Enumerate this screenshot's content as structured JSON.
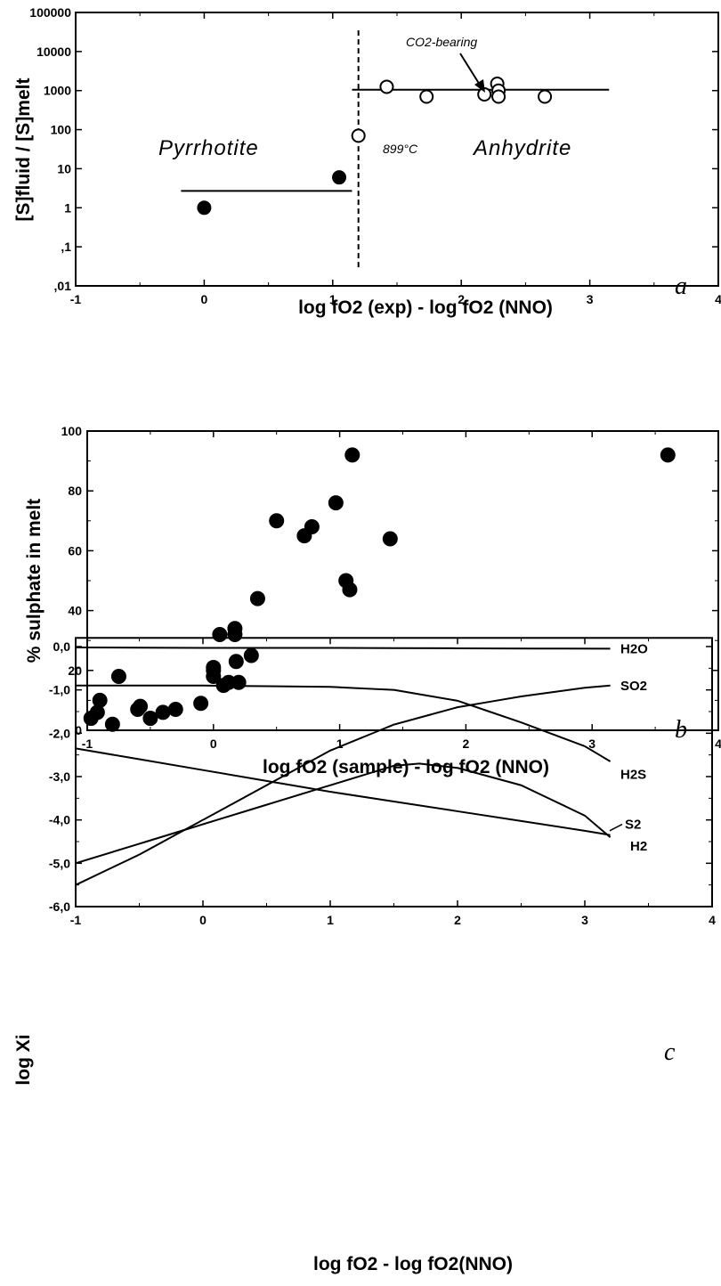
{
  "chart_data": [
    {
      "type": "scatter",
      "panel_label": "a",
      "xlabel": "log fO2 (exp) - log fO2 (NNO)",
      "ylabel": "[S]fluid / [S]melt",
      "xlim": [
        -1,
        4
      ],
      "ylim": [
        0.01,
        100000
      ],
      "yscale": "log",
      "x_ticks": [
        "-1",
        "0",
        "1",
        "2",
        "3",
        "4"
      ],
      "y_ticks": [
        "100000",
        "10000",
        "1000",
        "100",
        "10",
        "1",
        ",1",
        ",01"
      ],
      "y_tick_values": [
        100000,
        10000,
        1000,
        100,
        10,
        1,
        0.1,
        0.01
      ],
      "series": [
        {
          "marker": "filled-circle",
          "x": [
            0,
            1.05
          ],
          "y": [
            1,
            6
          ]
        },
        {
          "marker": "open-circle",
          "x": [
            1.2,
            1.42,
            1.73,
            2.18,
            2.28,
            2.29,
            2.29,
            2.65
          ],
          "y": [
            70,
            1250,
            700,
            800,
            1500,
            1000,
            700,
            700
          ]
        }
      ],
      "lines": [
        {
          "style": "solid",
          "x": [
            -0.18,
            1.15
          ],
          "y": [
            2.7,
            2.7
          ]
        },
        {
          "style": "solid",
          "x": [
            1.15,
            3.15
          ],
          "y": [
            1050,
            1050
          ]
        },
        {
          "style": "dashed",
          "x": [
            1.2,
            1.2
          ],
          "y": [
            0.03,
            40000
          ]
        }
      ],
      "annotations": {
        "pyrrhotite": "Pyrrhotite",
        "anhydrite": "Anhydrite",
        "temperature": "899°C",
        "co2": "CO2-bearing"
      }
    },
    {
      "type": "scatter",
      "panel_label": "b",
      "xlabel": "log fO2 (sample) - log fO2 (NNO)",
      "ylabel": "% sulphate in melt",
      "xlim": [
        -1,
        4
      ],
      "ylim": [
        0,
        100
      ],
      "x_ticks": [
        "-1",
        "0",
        "1",
        "2",
        "3",
        "4"
      ],
      "y_ticks": [
        "0",
        "20",
        "40",
        "60",
        "80",
        "100"
      ],
      "series": [
        {
          "marker": "filled-circle",
          "x": [
            -0.97,
            -0.9,
            -0.92,
            -0.8,
            -0.75,
            -0.6,
            -0.58,
            -0.5,
            -0.4,
            -0.3,
            -0.1,
            0.0,
            0.0,
            0.0,
            0.05,
            0.08,
            0.12,
            0.17,
            0.17,
            0.18,
            0.2,
            0.3,
            0.35,
            0.5,
            0.72,
            0.78,
            0.97,
            1.05,
            1.08,
            1.1,
            1.4,
            3.6
          ],
          "y": [
            4,
            10,
            6,
            2,
            18,
            7,
            8,
            4,
            6,
            7,
            9,
            18,
            20,
            21,
            32,
            15,
            16,
            32,
            34,
            23,
            16,
            25,
            44,
            70,
            65,
            68,
            76,
            50,
            47,
            92,
            64,
            92
          ]
        }
      ]
    },
    {
      "type": "line",
      "panel_label": "c",
      "xlabel": "log fO2 - log fO2(NNO)",
      "ylabel": "log Xi",
      "xlim": [
        -1,
        4
      ],
      "ylim": [
        -6,
        0.2
      ],
      "x_ticks": [
        "-1",
        "0",
        "1",
        "2",
        "3",
        "4"
      ],
      "y_ticks": [
        "0,0",
        "-1,0",
        "-2,0",
        "-3,0",
        "-4,0",
        "-5,0",
        "-6,0"
      ],
      "series": [
        {
          "name": "H2O",
          "x": [
            -1,
            0,
            1,
            2,
            3.2
          ],
          "y": [
            -0.02,
            -0.03,
            -0.03,
            -0.04,
            -0.05
          ]
        },
        {
          "name": "SO2",
          "x": [
            -1,
            -0.5,
            0,
            0.5,
            1,
            1.5,
            2,
            2.5,
            3.0,
            3.2
          ],
          "y": [
            -5.5,
            -4.8,
            -4.0,
            -3.2,
            -2.4,
            -1.8,
            -1.4,
            -1.15,
            -0.95,
            -0.9
          ]
        },
        {
          "name": "H2S",
          "x": [
            -1,
            0,
            1,
            1.5,
            2.0,
            2.5,
            3.0,
            3.2
          ],
          "y": [
            -0.9,
            -0.9,
            -0.93,
            -1.0,
            -1.25,
            -1.75,
            -2.3,
            -2.65
          ]
        },
        {
          "name": "S2",
          "x": [
            -1,
            0,
            1,
            1.5,
            1.7,
            2.0,
            2.5,
            3.0,
            3.2
          ],
          "y": [
            -5.0,
            -4.1,
            -3.2,
            -2.75,
            -2.7,
            -2.8,
            -3.2,
            -3.9,
            -4.4
          ]
        },
        {
          "name": "H2",
          "x": [
            -1,
            0,
            1,
            2,
            3,
            3.2
          ],
          "y": [
            -2.35,
            -2.85,
            -3.35,
            -3.8,
            -4.25,
            -4.35
          ]
        }
      ]
    }
  ]
}
